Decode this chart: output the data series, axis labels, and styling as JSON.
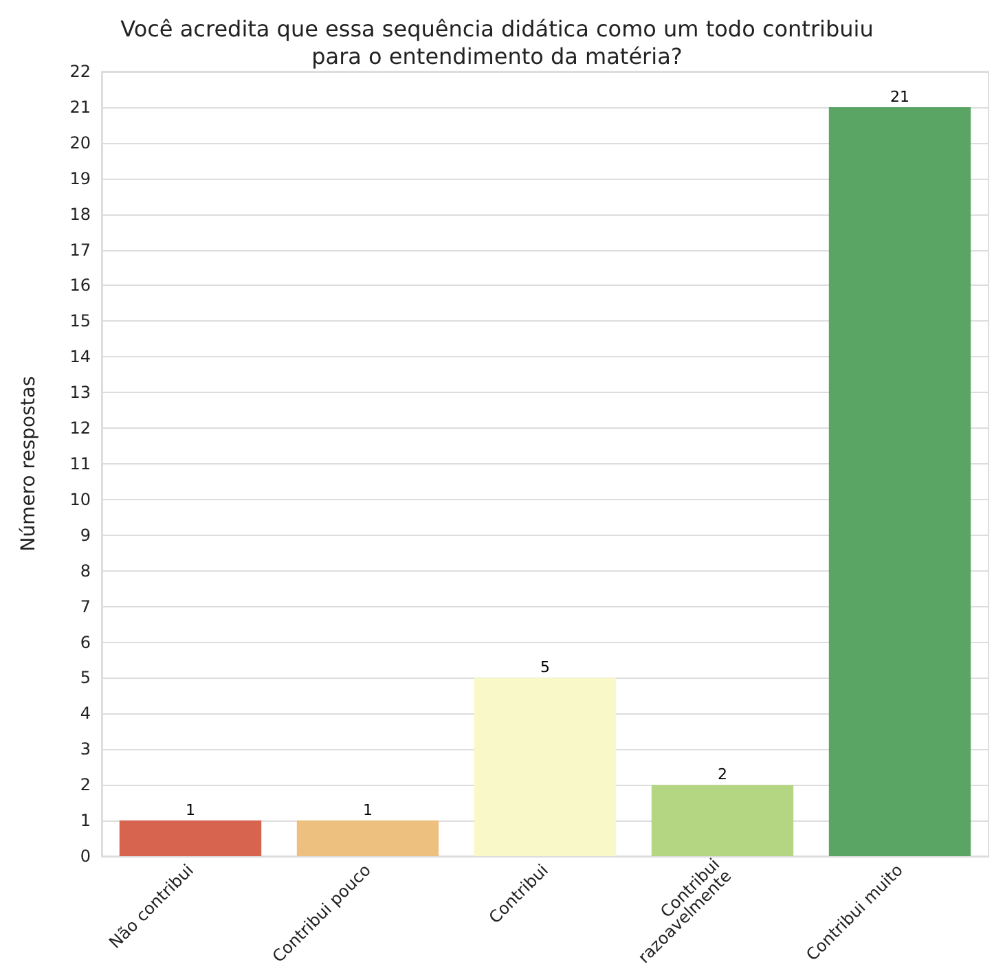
{
  "chart_data": {
    "type": "bar",
    "title": "Você acredita que essa sequência didática como um todo contribuiu\npara o entendimento da matéria?",
    "ylabel": "Número respostas",
    "categories": [
      "Não contribui",
      "Contribui pouco",
      "Contribui",
      "Contribui\nrazoavelmente",
      "Contribui muito"
    ],
    "values": [
      1,
      1,
      5,
      2,
      21
    ],
    "colors": [
      "#d6644e",
      "#eec080",
      "#f8f8c8",
      "#b4d682",
      "#5aa563"
    ],
    "ylim": [
      0,
      22
    ],
    "yticks": [
      0,
      1,
      2,
      3,
      4,
      5,
      6,
      7,
      8,
      9,
      10,
      11,
      12,
      13,
      14,
      15,
      16,
      17,
      18,
      19,
      20,
      21,
      22
    ],
    "grid": "y",
    "data_labels": true
  }
}
